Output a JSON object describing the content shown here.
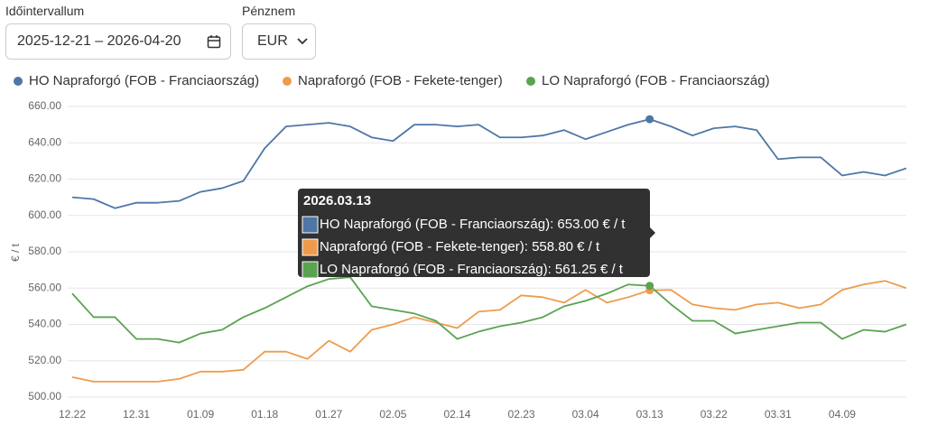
{
  "controls": {
    "range_label": "Időintervallum",
    "range_value": "2025-12-21 – 2026-04-20",
    "currency_label": "Pénznem",
    "currency_value": "EUR"
  },
  "chart_data": {
    "type": "line",
    "ylabel": "€ / t",
    "x": [
      "12.22",
      "12.25",
      "12.28",
      "12.31",
      "01.03",
      "01.06",
      "01.09",
      "01.12",
      "01.15",
      "01.18",
      "01.21",
      "01.24",
      "01.27",
      "01.30",
      "02.02",
      "02.05",
      "02.08",
      "02.11",
      "02.14",
      "02.17",
      "02.20",
      "02.23",
      "02.26",
      "03.01",
      "03.04",
      "03.07",
      "03.10",
      "03.13",
      "03.16",
      "03.19",
      "03.22",
      "03.25",
      "03.28",
      "03.31",
      "04.03",
      "04.06",
      "04.09",
      "04.12",
      "04.15",
      "04.18"
    ],
    "xticks": [
      "12.22",
      "12.31",
      "01.09",
      "01.18",
      "01.27",
      "02.05",
      "02.14",
      "02.23",
      "03.04",
      "03.13",
      "03.22",
      "03.31",
      "04.09"
    ],
    "ylim": [
      500,
      660
    ],
    "yticks": [
      {
        "value": 500,
        "label": "500.00"
      },
      {
        "value": 520,
        "label": "520.00"
      },
      {
        "value": 540,
        "label": "540.00"
      },
      {
        "value": 560,
        "label": "560.00"
      },
      {
        "value": 580,
        "label": "580.00"
      },
      {
        "value": 600,
        "label": "600.00"
      },
      {
        "value": 620,
        "label": "620.00"
      },
      {
        "value": 640,
        "label": "640.00"
      },
      {
        "value": 660,
        "label": "660.00"
      }
    ],
    "grid": true,
    "legend": "top",
    "series": [
      {
        "name": "HO Napraforgó (FOB - Franciaország)",
        "color": "#4e76a6",
        "values": [
          610,
          609,
          604,
          607,
          607,
          608,
          613,
          615,
          619,
          637,
          649,
          650,
          651,
          649,
          643,
          641,
          650,
          650,
          649,
          650,
          643,
          643,
          644,
          647,
          642,
          646,
          650,
          653,
          649,
          644,
          648,
          649,
          647,
          631,
          632,
          632,
          622,
          624,
          622,
          626
        ]
      },
      {
        "name": "Napraforgó (FOB - Fekete-tenger)",
        "color": "#ee9c4c",
        "values": [
          511,
          508.5,
          508.5,
          508.5,
          508.5,
          510,
          514,
          514,
          515,
          525,
          525,
          521,
          531,
          525,
          537,
          540,
          544,
          541,
          538,
          547,
          548,
          556,
          555,
          552,
          559,
          552,
          555,
          558.8,
          559,
          551,
          549,
          548,
          551,
          552,
          549,
          551,
          559,
          562,
          564,
          560
        ]
      },
      {
        "name": "LO Napraforgó (FOB - Franciaország)",
        "color": "#5aa351",
        "values": [
          557,
          544,
          544,
          532,
          532,
          530,
          535,
          537,
          544,
          549,
          555,
          561,
          565,
          566,
          550,
          548,
          546,
          542,
          532,
          536,
          539,
          541,
          544,
          550,
          553,
          557,
          562,
          561.25,
          551,
          542,
          542,
          535,
          537,
          539,
          541,
          541,
          532,
          537,
          536,
          540
        ]
      }
    ],
    "tooltip": {
      "title": "2026.03.13",
      "index": 27,
      "lines": [
        "HO Napraforgó (FOB - Franciaország): 653.00 € / t",
        "Napraforgó (FOB - Fekete-tenger): 558.80 € / t",
        "LO Napraforgó (FOB - Franciaország): 561.25 € / t"
      ]
    }
  }
}
